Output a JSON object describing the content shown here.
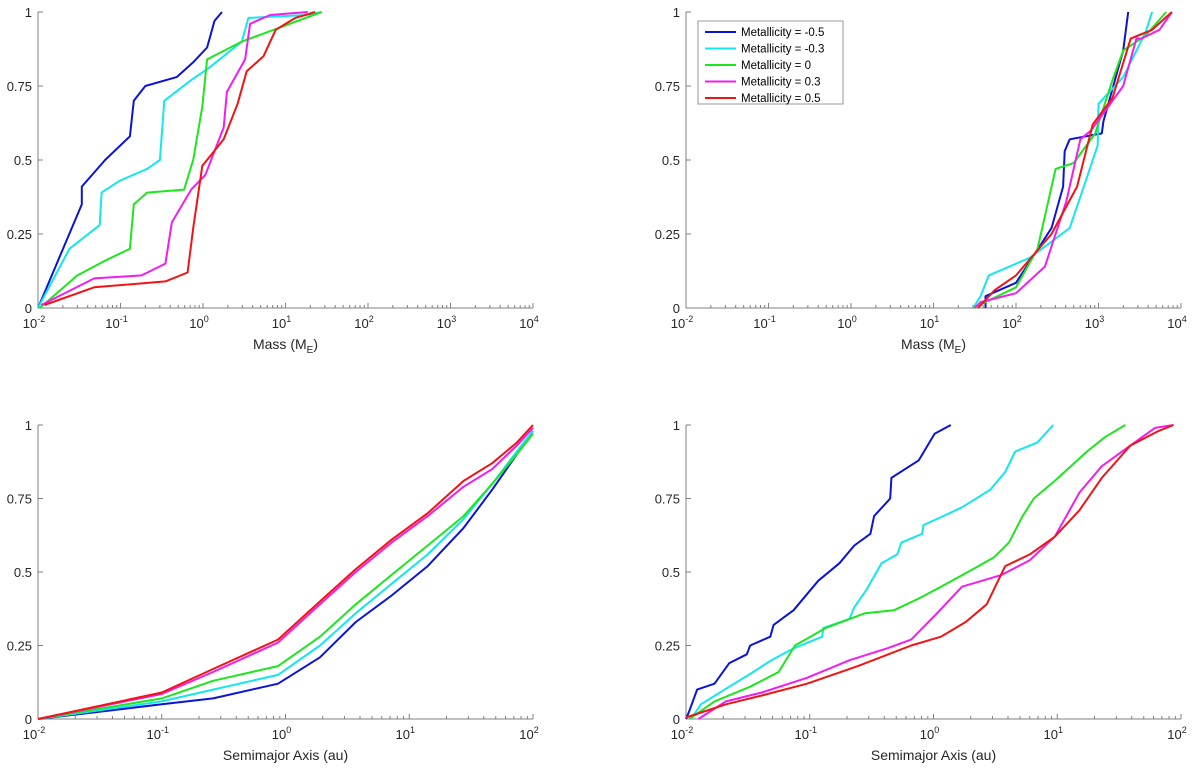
{
  "chart_data": [
    {
      "type": "line",
      "xscale": "log",
      "xlim": [
        0.01,
        10000
      ],
      "ylim": [
        0,
        1
      ],
      "xtick_exponents": [
        -2,
        -1,
        0,
        1,
        2,
        3,
        4
      ],
      "yticks": [
        "0",
        "0.25",
        "0.5",
        "0.75",
        "1"
      ],
      "xlabel": {
        "main": "Mass (M",
        "sub": "E",
        "end": ")"
      },
      "grid": false,
      "series": [
        {
          "color": "#0a14d8",
          "x": [
            0.01,
            0.034,
            0.034,
            0.065,
            0.13,
            0.145,
            0.2,
            0.48,
            0.76,
            1.12,
            1.38,
            1.7
          ],
          "y": [
            0,
            0.35,
            0.41,
            0.5,
            0.58,
            0.7,
            0.75,
            0.78,
            0.83,
            0.88,
            0.97,
            1
          ]
        },
        {
          "color": "#14e6f0",
          "x": [
            0.01,
            0.024,
            0.056,
            0.059,
            0.098,
            0.21,
            0.3,
            0.34,
            0.72,
            1.17,
            2.95,
            3.55,
            17.8,
            27.5
          ],
          "y": [
            0,
            0.2,
            0.28,
            0.39,
            0.43,
            0.47,
            0.5,
            0.7,
            0.77,
            0.81,
            0.9,
            0.98,
            0.99,
            1
          ]
        },
        {
          "color": "#1ee61e",
          "x": [
            0.0105,
            0.03,
            0.065,
            0.13,
            0.145,
            0.21,
            0.59,
            0.76,
            0.98,
            1.12,
            2.95,
            7.2,
            27.5
          ],
          "y": [
            0,
            0.11,
            0.16,
            0.2,
            0.35,
            0.39,
            0.4,
            0.5,
            0.68,
            0.84,
            0.9,
            0.94,
            1
          ]
        },
        {
          "color": "#f01ef0",
          "x": [
            0.011,
            0.048,
            0.18,
            0.35,
            0.42,
            0.72,
            1.07,
            1.78,
            1.95,
            3.24,
            3.72,
            6.5,
            18.6
          ],
          "y": [
            0.01,
            0.1,
            0.11,
            0.15,
            0.29,
            0.4,
            0.45,
            0.61,
            0.73,
            0.84,
            0.96,
            0.99,
            1
          ]
        },
        {
          "color": "#f01414",
          "x": [
            0.012,
            0.048,
            0.35,
            0.65,
            0.76,
            0.98,
            1.78,
            2.63,
            3.39,
            5.4,
            7.6,
            13.2,
            22.9
          ],
          "y": [
            0.01,
            0.07,
            0.09,
            0.12,
            0.27,
            0.48,
            0.57,
            0.69,
            0.8,
            0.85,
            0.94,
            0.98,
            1
          ]
        }
      ]
    },
    {
      "type": "line",
      "xscale": "log",
      "xlim": [
        0.01,
        10000
      ],
      "ylim": [
        0,
        1
      ],
      "xtick_exponents": [
        -2,
        -1,
        0,
        1,
        2,
        3,
        4
      ],
      "yticks": [
        "0",
        "0.25",
        "0.5",
        "0.75",
        "1"
      ],
      "xlabel": {
        "main": "Mass (M",
        "sub": "E",
        "end": ")"
      },
      "grid": false,
      "legend": "top-left",
      "series": [
        {
          "name": "Metallicity = -0.5",
          "color": "#0a14d8",
          "x": [
            42.7,
            42.7,
            100,
            269,
            372,
            389,
            447,
            1096,
            1148,
            1995,
            2291
          ],
          "y": [
            0,
            0.04,
            0.085,
            0.27,
            0.41,
            0.53,
            0.57,
            0.59,
            0.63,
            0.87,
            1
          ]
        },
        {
          "name": "Metallicity = -0.3",
          "color": "#14e6f0",
          "x": [
            30.2,
            37.2,
            46.8,
            148,
            447,
            741,
            977,
            1000,
            1995,
            3715,
            4467
          ],
          "y": [
            0,
            0.04,
            0.11,
            0.17,
            0.27,
            0.45,
            0.55,
            0.69,
            0.78,
            0.93,
            1
          ]
        },
        {
          "name": "Metallicity = 0",
          "color": "#1ee61e",
          "x": [
            30.2,
            100,
            182,
            302,
            501,
            912,
            1479,
            1995,
            3715,
            6607
          ],
          "y": [
            0,
            0.07,
            0.2,
            0.47,
            0.49,
            0.59,
            0.77,
            0.87,
            0.92,
            1
          ]
        },
        {
          "name": "Metallicity = 0.3",
          "color": "#f01ef0",
          "x": [
            31.6,
            37.2,
            100,
            224,
            407,
            603,
            813,
            1995,
            2884,
            3311,
            5495,
            7762
          ],
          "y": [
            0,
            0.02,
            0.05,
            0.14,
            0.36,
            0.57,
            0.6,
            0.75,
            0.91,
            0.91,
            0.94,
            1
          ]
        },
        {
          "name": "Metallicity = 0.5",
          "color": "#f01414",
          "x": [
            34.7,
            55,
            100,
            269,
            550,
            851,
            1479,
            2455,
            4467,
            7762
          ],
          "y": [
            0,
            0.06,
            0.11,
            0.25,
            0.41,
            0.62,
            0.71,
            0.91,
            0.94,
            1
          ]
        }
      ]
    },
    {
      "type": "line",
      "xscale": "log",
      "xlim": [
        0.01,
        100
      ],
      "ylim": [
        0,
        1
      ],
      "xtick_exponents": [
        -2,
        -1,
        0,
        1,
        2
      ],
      "yticks": [
        "0",
        "0.25",
        "0.5",
        "0.75",
        "1"
      ],
      "xlabel": {
        "main": "Semimajor Axis (au)",
        "sub": "",
        "end": ""
      },
      "grid": false,
      "series": [
        {
          "color": "#0a14d8",
          "x": [
            0.01,
            0.1,
            0.26,
            0.87,
            1.9,
            3.7,
            7.2,
            14.1,
            27.5,
            46.8,
            74,
            100
          ],
          "y": [
            0,
            0.05,
            0.07,
            0.12,
            0.21,
            0.33,
            0.42,
            0.52,
            0.65,
            0.78,
            0.9,
            0.98
          ]
        },
        {
          "color": "#14e6f0",
          "x": [
            0.01,
            0.1,
            0.26,
            0.87,
            1.9,
            3.7,
            7.2,
            14.1,
            27.5,
            46.8,
            74,
            100
          ],
          "y": [
            0,
            0.06,
            0.1,
            0.15,
            0.25,
            0.36,
            0.46,
            0.56,
            0.68,
            0.8,
            0.91,
            0.98
          ]
        },
        {
          "color": "#1ee61e",
          "x": [
            0.01,
            0.1,
            0.26,
            0.87,
            1.9,
            3.7,
            7.2,
            14.1,
            27.5,
            46.8,
            74,
            100
          ],
          "y": [
            0,
            0.07,
            0.13,
            0.18,
            0.28,
            0.39,
            0.49,
            0.59,
            0.69,
            0.8,
            0.9,
            0.97
          ]
        },
        {
          "color": "#f01ef0",
          "x": [
            0.01,
            0.1,
            0.26,
            0.87,
            1.9,
            3.7,
            7.2,
            14.1,
            27.5,
            46.8,
            74,
            100
          ],
          "y": [
            0,
            0.085,
            0.16,
            0.26,
            0.39,
            0.5,
            0.6,
            0.69,
            0.79,
            0.85,
            0.93,
            0.99
          ]
        },
        {
          "color": "#f01414",
          "x": [
            0.01,
            0.1,
            0.26,
            0.87,
            1.9,
            3.7,
            7.2,
            14.1,
            27.5,
            46.8,
            74,
            100
          ],
          "y": [
            0,
            0.09,
            0.17,
            0.27,
            0.4,
            0.51,
            0.61,
            0.7,
            0.81,
            0.87,
            0.94,
            1
          ]
        }
      ]
    },
    {
      "type": "line",
      "xscale": "log",
      "xlim": [
        0.01,
        100
      ],
      "ylim": [
        0,
        1
      ],
      "xtick_exponents": [
        -2,
        -1,
        0,
        1,
        2
      ],
      "yticks": [
        "0",
        "0.25",
        "0.5",
        "0.75",
        "1"
      ],
      "xlabel": {
        "main": "Semimajor Axis (au)",
        "sub": "",
        "end": ""
      },
      "grid": false,
      "series": [
        {
          "color": "#0a14d8",
          "x": [
            0.01,
            0.0107,
            0.0123,
            0.017,
            0.0224,
            0.031,
            0.033,
            0.048,
            0.051,
            0.074,
            0.117,
            0.174,
            0.229,
            0.309,
            0.331,
            0.447,
            0.457,
            0.76,
            1.02,
            1.38
          ],
          "y": [
            0,
            0.03,
            0.1,
            0.12,
            0.19,
            0.22,
            0.25,
            0.28,
            0.32,
            0.37,
            0.47,
            0.53,
            0.59,
            0.63,
            0.69,
            0.75,
            0.82,
            0.88,
            0.97,
            1
          ]
        },
        {
          "color": "#14e6f0",
          "x": [
            0.011,
            0.0132,
            0.0224,
            0.035,
            0.049,
            0.074,
            0.126,
            0.129,
            0.209,
            0.229,
            0.288,
            0.38,
            0.51,
            0.55,
            0.81,
            0.83,
            1.2,
            1.7,
            2.88,
            3.8,
            4.57,
            6.9,
            9.3
          ],
          "y": [
            0,
            0.05,
            0.11,
            0.16,
            0.2,
            0.24,
            0.28,
            0.31,
            0.34,
            0.38,
            0.44,
            0.53,
            0.56,
            0.6,
            0.63,
            0.66,
            0.69,
            0.72,
            0.78,
            0.84,
            0.91,
            0.94,
            1
          ]
        },
        {
          "color": "#1ee61e",
          "x": [
            0.0107,
            0.017,
            0.033,
            0.056,
            0.076,
            0.135,
            0.28,
            0.48,
            0.76,
            1.15,
            2.09,
            3.09,
            4.07,
            5.25,
            6.46,
            9.55,
            17.4,
            24.5,
            35.5
          ],
          "y": [
            0,
            0.06,
            0.11,
            0.16,
            0.25,
            0.31,
            0.36,
            0.37,
            0.41,
            0.45,
            0.51,
            0.55,
            0.6,
            0.69,
            0.75,
            0.81,
            0.91,
            0.96,
            1
          ]
        },
        {
          "color": "#f01ef0",
          "x": [
            0.0126,
            0.021,
            0.041,
            0.095,
            0.21,
            0.42,
            0.66,
            1.07,
            1.7,
            3.55,
            6.0,
            9.55,
            15.1,
            22.9,
            38.9,
            61.7,
            87
          ],
          "y": [
            0,
            0.06,
            0.09,
            0.14,
            0.2,
            0.24,
            0.27,
            0.36,
            0.45,
            0.49,
            0.54,
            0.62,
            0.77,
            0.86,
            0.93,
            0.99,
            1
          ]
        },
        {
          "color": "#f01414",
          "x": [
            0.01,
            0.021,
            0.041,
            0.095,
            0.245,
            0.66,
            1.15,
            1.82,
            2.69,
            3.8,
            6.0,
            9.55,
            15.1,
            22.9,
            38.9,
            66,
            87
          ],
          "y": [
            0.005,
            0.05,
            0.08,
            0.12,
            0.18,
            0.25,
            0.28,
            0.33,
            0.39,
            0.52,
            0.56,
            0.62,
            0.71,
            0.82,
            0.93,
            0.98,
            1
          ]
        }
      ]
    }
  ]
}
